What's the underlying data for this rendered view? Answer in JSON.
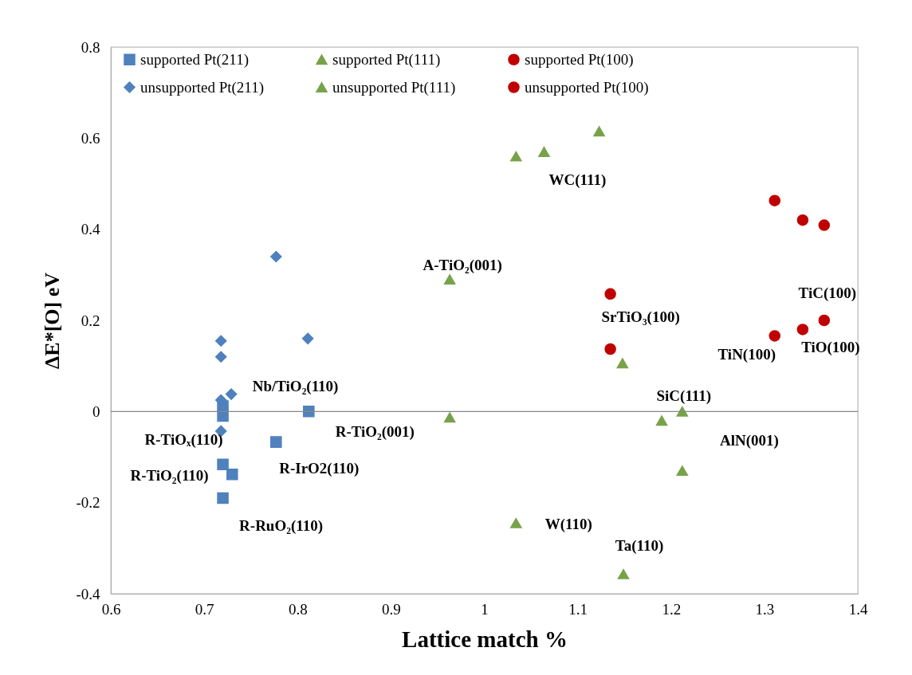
{
  "chart_data": {
    "type": "scatter",
    "xlabel": "Lattice match %",
    "ylabel": "ΔE*[O] eV",
    "xlim": [
      0.6,
      1.4
    ],
    "xticks": [
      0.6,
      0.7,
      0.8,
      0.9,
      1,
      1.1,
      1.2,
      1.3,
      1.4
    ],
    "ylim": [
      -0.4,
      0.8
    ],
    "yticks": [
      -0.4,
      -0.2,
      0,
      0.2,
      0.4,
      0.6,
      0.8
    ],
    "grid": false,
    "legend": "top",
    "series": [
      {
        "name": "supported Pt(211)",
        "color": "#4f81bd",
        "marker": "square",
        "x": [
          0.72,
          0.72,
          0.812,
          0.777,
          0.72,
          0.73,
          0.72
        ],
        "values": [
          0.012,
          -0.01,
          0,
          -0.067,
          -0.116,
          -0.138,
          -0.19
        ]
      },
      {
        "name": "unsupported Pt(211)",
        "color": "#4f81bd",
        "marker": "diamond",
        "x": [
          0.777,
          0.718,
          0.718,
          0.811,
          0.718,
          0.729,
          0.718
        ],
        "values": [
          0.34,
          0.155,
          0.12,
          0.16,
          0.025,
          0.038,
          -0.043
        ]
      },
      {
        "name": "supported Pt(111)",
        "color": "#77a24a",
        "marker": "triangle",
        "x": [
          1.064,
          0.963,
          1.19,
          1.212,
          1.034,
          1.149
        ],
        "values": [
          0.57,
          0.29,
          -0.02,
          0,
          -0.245,
          -0.357
        ]
      },
      {
        "name": "unsupported Pt(111)",
        "color": "#77a24a",
        "marker": "triangle",
        "x": [
          1.034,
          1.123,
          0.963,
          1.148,
          1.212
        ],
        "values": [
          0.56,
          0.615,
          -0.013,
          0.106,
          -0.13
        ]
      },
      {
        "name": "supported Pt(100)",
        "color": "#c00000",
        "marker": "circle",
        "x": [
          1.135,
          1.311,
          1.341,
          1.364
        ],
        "values": [
          0.137,
          0.166,
          0.18,
          0.2
        ]
      },
      {
        "name": "unsupported Pt(100)",
        "color": "#c00000",
        "marker": "circle",
        "x": [
          1.135,
          1.311,
          1.341,
          1.364
        ],
        "values": [
          0.258,
          0.463,
          0.42,
          0.409
        ]
      }
    ],
    "ref_lines": [
      {
        "axis": "y",
        "value": 0,
        "color": "#888888"
      }
    ],
    "annotations": [
      {
        "text": "WC(111)",
        "x": 1.064,
        "y": 0.57
      },
      {
        "text": "A-TiO₂(001)",
        "x": 0.963,
        "y": 0.29
      },
      {
        "text": "SrTiO₃(100)",
        "x": 1.135,
        "y": 0.137
      },
      {
        "text": "TiC(100)",
        "x": 1.364,
        "y": 0.2
      },
      {
        "text": "TiN(100)",
        "x": 1.311,
        "y": 0.166
      },
      {
        "text": "TiO(100)",
        "x": 1.341,
        "y": 0.18
      },
      {
        "text": "SiC(111)",
        "x": 1.212,
        "y": 0
      },
      "AlN(001)",
      {
        "text": "W(110)",
        "x": 1.034,
        "y": -0.245
      },
      {
        "text": "Ta(110)",
        "x": 1.149,
        "y": -0.357
      },
      {
        "text": "R-TiO₂(001)",
        "x": 0.812,
        "y": 0
      },
      {
        "text": "Nb/TiO₂(110)",
        "x": 0.72,
        "y": 0.012
      },
      {
        "text": "R-TiOₓ(110)",
        "x": 0.72,
        "y": -0.01
      },
      {
        "text": "R-TiO₂(110)",
        "x": 0.72,
        "y": -0.116
      },
      {
        "text": "R-IrO2(110)",
        "x": 0.777,
        "y": -0.067
      },
      {
        "text": "R-RuO₂(110)",
        "x": 0.72,
        "y": -0.19
      }
    ]
  }
}
